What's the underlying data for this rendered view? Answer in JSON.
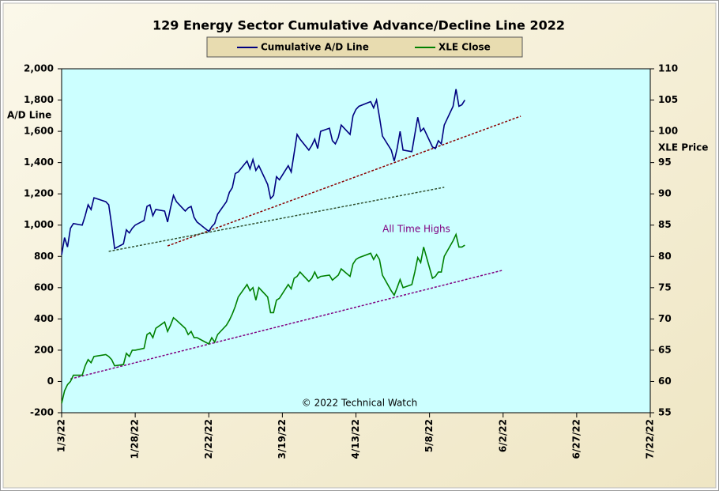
{
  "chart_data": {
    "type": "line",
    "title": "129 Energy Sector Cumulative Advance/Decline Line 2022",
    "y_label": "A/D Line",
    "y2_label": "XLE Price",
    "annotations": [
      "All Time Highs",
      "© 2022 Technical Watch"
    ],
    "background": "#ccffff",
    "x": [
      "2022-01-03",
      "2022-01-04",
      "2022-01-05",
      "2022-01-06",
      "2022-01-07",
      "2022-01-10",
      "2022-01-11",
      "2022-01-12",
      "2022-01-13",
      "2022-01-14",
      "2022-01-18",
      "2022-01-19",
      "2022-01-20",
      "2022-01-21",
      "2022-01-24",
      "2022-01-25",
      "2022-01-26",
      "2022-01-27",
      "2022-01-28",
      "2022-01-31",
      "2022-02-01",
      "2022-02-02",
      "2022-02-03",
      "2022-02-04",
      "2022-02-07",
      "2022-02-08",
      "2022-02-09",
      "2022-02-10",
      "2022-02-11",
      "2022-02-14",
      "2022-02-15",
      "2022-02-16",
      "2022-02-17",
      "2022-02-18",
      "2022-02-22",
      "2022-02-23",
      "2022-02-24",
      "2022-02-25",
      "2022-02-28",
      "2022-03-01",
      "2022-03-02",
      "2022-03-03",
      "2022-03-04",
      "2022-03-07",
      "2022-03-08",
      "2022-03-09",
      "2022-03-10",
      "2022-03-11",
      "2022-03-14",
      "2022-03-15",
      "2022-03-16",
      "2022-03-17",
      "2022-03-18",
      "2022-03-21",
      "2022-03-22",
      "2022-03-23",
      "2022-03-24",
      "2022-03-25",
      "2022-03-28",
      "2022-03-29",
      "2022-03-30",
      "2022-03-31",
      "2022-04-01",
      "2022-04-04",
      "2022-04-05",
      "2022-04-06",
      "2022-04-07",
      "2022-04-08",
      "2022-04-11",
      "2022-04-12",
      "2022-04-13",
      "2022-04-14",
      "2022-04-18",
      "2022-04-19",
      "2022-04-20",
      "2022-04-21",
      "2022-04-22",
      "2022-04-25",
      "2022-04-26",
      "2022-04-27",
      "2022-04-28",
      "2022-04-29",
      "2022-05-02",
      "2022-05-03",
      "2022-05-04",
      "2022-05-05",
      "2022-05-06",
      "2022-05-09",
      "2022-05-10",
      "2022-05-11",
      "2022-05-12",
      "2022-05-13",
      "2022-05-16",
      "2022-05-17",
      "2022-05-18",
      "2022-05-19",
      "2022-05-20"
    ],
    "series": [
      {
        "name": "Cumulative A/D Line",
        "color": "#000080",
        "axis": "y",
        "values": [
          810,
          920,
          860,
          980,
          1010,
          1000,
          1060,
          1130,
          1100,
          1175,
          1150,
          1130,
          1000,
          850,
          880,
          970,
          950,
          980,
          1000,
          1030,
          1120,
          1130,
          1060,
          1100,
          1090,
          1020,
          1110,
          1190,
          1150,
          1090,
          1110,
          1120,
          1050,
          1020,
          960,
          990,
          1010,
          1070,
          1150,
          1210,
          1240,
          1330,
          1340,
          1410,
          1360,
          1420,
          1350,
          1380,
          1260,
          1170,
          1190,
          1310,
          1290,
          1380,
          1340,
          1460,
          1580,
          1550,
          1480,
          1510,
          1550,
          1490,
          1600,
          1620,
          1540,
          1520,
          1560,
          1640,
          1580,
          1700,
          1740,
          1760,
          1790,
          1750,
          1800,
          1690,
          1570,
          1480,
          1410,
          1490,
          1600,
          1480,
          1470,
          1580,
          1690,
          1600,
          1620,
          1500,
          1490,
          1540,
          1520,
          1640,
          1760,
          1870,
          1760,
          1770,
          1800
        ]
      },
      {
        "name": "XLE Close",
        "color": "#008000",
        "axis": "y2",
        "values": [
          56.5,
          58.5,
          59.5,
          60,
          61,
          61,
          62.5,
          63.5,
          63,
          64,
          64.3,
          64,
          63.5,
          62.5,
          62.7,
          64.5,
          64,
          65,
          65,
          65.3,
          67.5,
          67.8,
          67,
          68.5,
          69.5,
          68,
          69,
          70.2,
          69.8,
          68.5,
          67.5,
          68,
          67,
          67,
          66,
          67,
          66.3,
          67.5,
          69,
          69.8,
          70.8,
          72,
          73.5,
          75.5,
          74.5,
          75,
          73,
          75,
          73.5,
          71,
          71,
          73,
          73.3,
          75.5,
          74.8,
          76.5,
          76.8,
          77.5,
          76,
          76.5,
          77.5,
          76.5,
          76.8,
          77,
          76.2,
          76.6,
          77,
          78,
          76.8,
          78.8,
          79.5,
          79.8,
          80.5,
          79.5,
          80.3,
          79.5,
          77,
          74.5,
          73.8,
          75,
          76.3,
          75,
          75.5,
          77.5,
          79.8,
          79,
          81.5,
          76.5,
          76.8,
          77.5,
          77.5,
          80,
          82.5,
          83.5,
          81.5,
          81.5,
          81.8
        ]
      }
    ],
    "trendlines": [
      {
        "axis": "y",
        "color": "#8b0000",
        "x": [
          "2022-02-08",
          "2022-06-08"
        ],
        "values": [
          867,
          1697
        ]
      },
      {
        "axis": "y",
        "color": "#2f4f2f",
        "x": [
          "2022-01-19",
          "2022-05-13"
        ],
        "values": [
          832,
          1242
        ]
      },
      {
        "axis": "y2",
        "color": "#800080",
        "x": [
          "2022-01-06",
          "2022-06-02"
        ],
        "values": [
          60.4,
          77.8
        ]
      }
    ],
    "xlim": [
      "2022-01-03",
      "2022-07-22"
    ],
    "xticks": [
      {
        "value": "2022-01-03",
        "label": "1/3/22"
      },
      {
        "value": "2022-01-28",
        "label": "1/28/22"
      },
      {
        "value": "2022-02-22",
        "label": "2/22/22"
      },
      {
        "value": "2022-03-19",
        "label": "3/19/22"
      },
      {
        "value": "2022-04-13",
        "label": "4/13/22"
      },
      {
        "value": "2022-05-08",
        "label": "5/8/22"
      },
      {
        "value": "2022-06-02",
        "label": "6/2/22"
      },
      {
        "value": "2022-06-27",
        "label": "6/27/22"
      },
      {
        "value": "2022-07-22",
        "label": "7/22/22"
      }
    ],
    "ylim": [
      -200,
      2000
    ],
    "yticks": [
      -200,
      0,
      200,
      400,
      600,
      800,
      {
        "value": 1000,
        "label": "1,000"
      },
      {
        "value": 1200,
        "label": "1,200"
      },
      {
        "value": 1400,
        "label": "1,400"
      },
      {
        "value": 1600,
        "label": "1,600"
      },
      {
        "value": 1800,
        "label": "1,800"
      },
      {
        "value": 2000,
        "label": "2,000"
      }
    ],
    "y2lim": [
      55,
      110
    ],
    "y2ticks": [
      55,
      60,
      65,
      70,
      75,
      80,
      85,
      90,
      95,
      100,
      105,
      110
    ]
  }
}
